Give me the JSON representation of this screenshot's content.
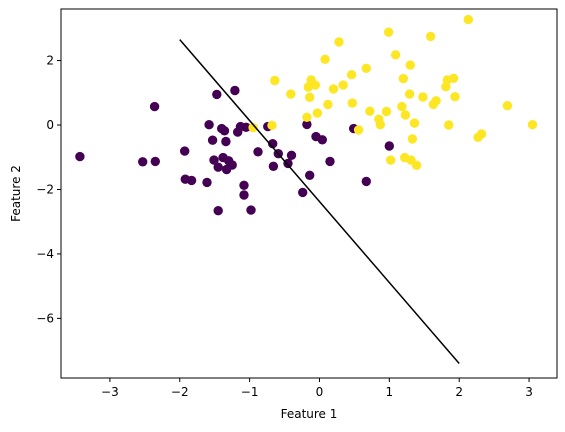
{
  "chart_data": {
    "type": "scatter",
    "title": "",
    "xlabel": "Feature 1",
    "ylabel": "Feature 2",
    "xlim": [
      -3.7,
      3.4
    ],
    "ylim": [
      -7.85,
      3.6
    ],
    "xticks": [
      -3,
      -2,
      -1,
      0,
      1,
      2,
      3
    ],
    "xtick_labels": [
      "−3",
      "−2",
      "−1",
      "0",
      "1",
      "2",
      "3"
    ],
    "yticks": [
      -6,
      -4,
      -2,
      0,
      2
    ],
    "ytick_labels": [
      "−6",
      "−4",
      "−2",
      "0",
      "2"
    ],
    "grid": false,
    "legend": "none",
    "series": [
      {
        "color": "#440154",
        "points": [
          [
            -3.43,
            -0.98
          ],
          [
            -2.53,
            -1.14
          ],
          [
            -2.36,
            0.57
          ],
          [
            -2.35,
            -1.13
          ],
          [
            -1.93,
            -0.81
          ],
          [
            -1.92,
            -1.68
          ],
          [
            -1.83,
            -1.72
          ],
          [
            -1.61,
            -1.78
          ],
          [
            -1.58,
            0.01
          ],
          [
            -1.53,
            -0.47
          ],
          [
            -1.51,
            -1.09
          ],
          [
            -1.47,
            0.95
          ],
          [
            -1.45,
            -2.66
          ],
          [
            -1.45,
            -1.31
          ],
          [
            -1.4,
            -0.11
          ],
          [
            -1.38,
            -1.01
          ],
          [
            -1.36,
            -0.18
          ],
          [
            -1.34,
            -0.51
          ],
          [
            -1.33,
            -1.38
          ],
          [
            -1.3,
            -1.11
          ],
          [
            -1.25,
            -1.24
          ],
          [
            -1.21,
            1.07
          ],
          [
            -1.17,
            -0.22
          ],
          [
            -1.13,
            -0.05
          ],
          [
            -1.08,
            -1.87
          ],
          [
            -1.08,
            -2.17
          ],
          [
            -1.05,
            -0.07
          ],
          [
            -0.98,
            -2.64
          ],
          [
            -0.88,
            -0.83
          ],
          [
            -0.74,
            -0.05
          ],
          [
            -0.67,
            -0.58
          ],
          [
            -0.66,
            -1.28
          ],
          [
            -0.59,
            -0.89
          ],
          [
            -0.45,
            -1.19
          ],
          [
            -0.4,
            -0.94
          ],
          [
            -0.24,
            -2.09
          ],
          [
            -0.18,
            0.02
          ],
          [
            -0.14,
            -1.56
          ],
          [
            -0.05,
            -0.36
          ],
          [
            0.04,
            -0.46
          ],
          [
            0.15,
            -1.13
          ],
          [
            0.49,
            -0.11
          ],
          [
            0.67,
            -1.75
          ],
          [
            1.0,
            -0.65
          ]
        ]
      },
      {
        "color": "#fde725",
        "points": [
          [
            -0.95,
            -0.08
          ],
          [
            -0.64,
            1.38
          ],
          [
            -0.68,
            -0.01
          ],
          [
            -0.41,
            0.96
          ],
          [
            -0.18,
            0.24
          ],
          [
            -0.16,
            1.18
          ],
          [
            -0.14,
            0.86
          ],
          [
            -0.12,
            1.4
          ],
          [
            -0.06,
            1.24
          ],
          [
            -0.03,
            0.37
          ],
          [
            0.08,
            2.04
          ],
          [
            0.12,
            0.64
          ],
          [
            0.2,
            1.12
          ],
          [
            0.28,
            2.58
          ],
          [
            0.34,
            1.24
          ],
          [
            0.46,
            1.56
          ],
          [
            0.47,
            0.68
          ],
          [
            0.56,
            -0.15
          ],
          [
            0.67,
            1.76
          ],
          [
            0.72,
            0.43
          ],
          [
            0.85,
            0.18
          ],
          [
            0.87,
            0.01
          ],
          [
            0.96,
            0.42
          ],
          [
            0.99,
            2.88
          ],
          [
            1.02,
            -1.09
          ],
          [
            1.09,
            2.18
          ],
          [
            1.18,
            0.57
          ],
          [
            1.2,
            1.44
          ],
          [
            1.22,
            -1.01
          ],
          [
            1.23,
            0.31
          ],
          [
            1.29,
            0.96
          ],
          [
            1.3,
            1.86
          ],
          [
            1.31,
            -1.09
          ],
          [
            1.33,
            -0.43
          ],
          [
            1.36,
            0.06
          ],
          [
            1.39,
            -1.25
          ],
          [
            1.48,
            0.87
          ],
          [
            1.59,
            2.75
          ],
          [
            1.63,
            0.64
          ],
          [
            1.67,
            0.75
          ],
          [
            1.81,
            1.19
          ],
          [
            1.83,
            1.4
          ],
          [
            1.85,
            0.0
          ],
          [
            1.92,
            1.45
          ],
          [
            1.94,
            0.88
          ],
          [
            2.13,
            3.27
          ],
          [
            2.27,
            -0.38
          ],
          [
            2.32,
            -0.28
          ],
          [
            2.69,
            0.6
          ],
          [
            3.05,
            0.01
          ]
        ]
      }
    ],
    "boundary_line": {
      "color": "#000000",
      "x": [
        -2.0,
        2.0
      ],
      "y": [
        2.65,
        -7.4
      ]
    }
  }
}
